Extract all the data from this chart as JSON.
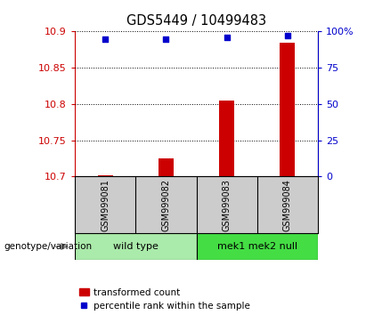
{
  "title": "GDS5449 / 10499483",
  "samples": [
    "GSM999081",
    "GSM999082",
    "GSM999083",
    "GSM999084"
  ],
  "bar_values": [
    10.702,
    10.725,
    10.805,
    10.885
  ],
  "percentile_values": [
    95,
    95,
    96,
    97
  ],
  "ylim_left": [
    10.7,
    10.9
  ],
  "ylim_right": [
    0,
    100
  ],
  "yticks_left": [
    10.7,
    10.75,
    10.8,
    10.85,
    10.9
  ],
  "yticks_right": [
    0,
    25,
    50,
    75,
    100
  ],
  "ytick_labels_right": [
    "0",
    "25",
    "50",
    "75",
    "100%"
  ],
  "bar_color": "#cc0000",
  "dot_color": "#0000cc",
  "groups": [
    {
      "label": "wild type",
      "samples": [
        0,
        1
      ],
      "color": "#90ee90"
    },
    {
      "label": "mek1 mek2 null",
      "samples": [
        2,
        3
      ],
      "color": "#44dd44"
    }
  ],
  "legend_bar_label": "transformed count",
  "legend_dot_label": "percentile rank within the sample",
  "genotype_label": "genotype/variation",
  "bar_width": 0.25
}
